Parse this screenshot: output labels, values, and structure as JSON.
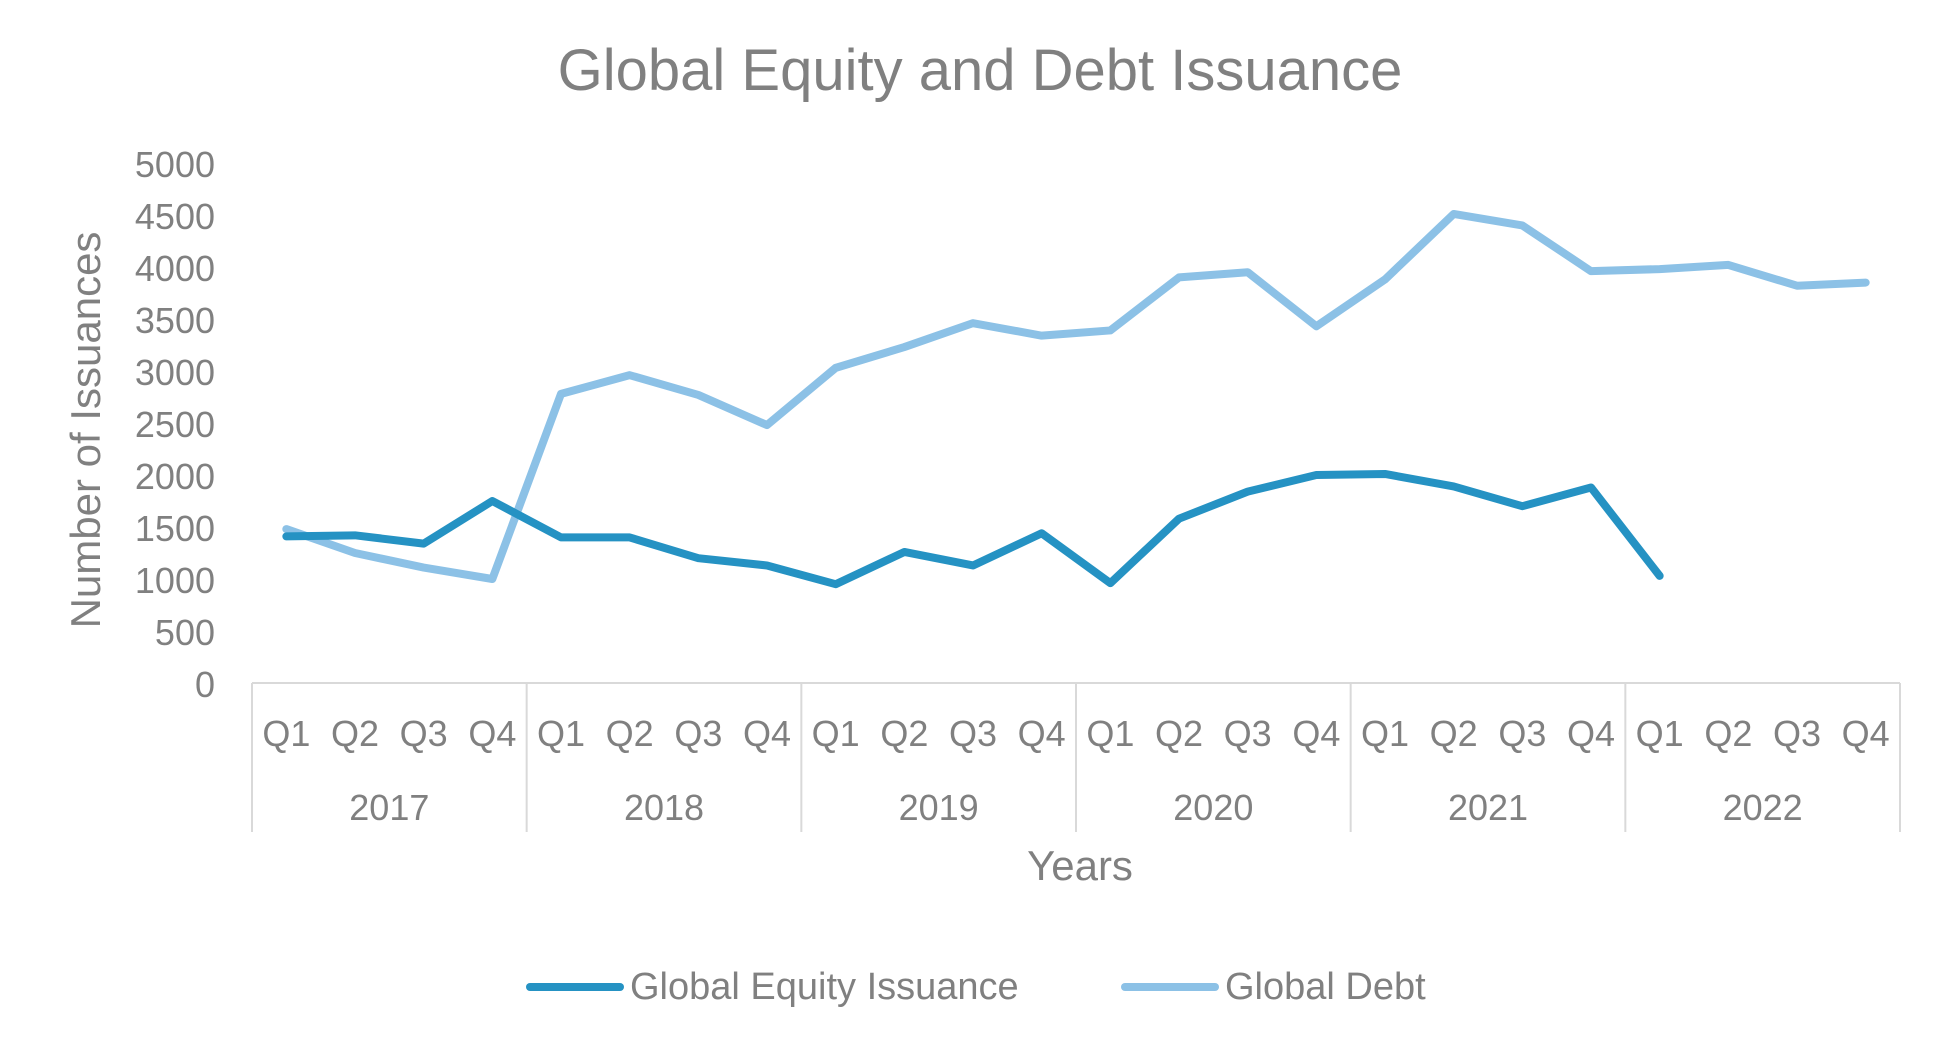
{
  "chart_data": {
    "type": "line",
    "title": "Global Equity and Debt Issuance",
    "xlabel": "Years",
    "ylabel": "Number of Issuances",
    "ylim": [
      0,
      5000
    ],
    "yticks": [
      "0",
      "500",
      "1000",
      "1500",
      "2000",
      "2500",
      "3000",
      "3500",
      "4000",
      "4500",
      "5000"
    ],
    "x_quarters": [
      "Q1",
      "Q2",
      "Q3",
      "Q4",
      "Q1",
      "Q2",
      "Q3",
      "Q4",
      "Q1",
      "Q2",
      "Q3",
      "Q4",
      "Q1",
      "Q2",
      "Q3",
      "Q4",
      "Q1",
      "Q2",
      "Q3",
      "Q4",
      "Q1",
      "Q2",
      "Q3",
      "Q4"
    ],
    "x_years": [
      "2017",
      "2018",
      "2019",
      "2020",
      "2021",
      "2022"
    ],
    "grid": false,
    "legend_position": "bottom",
    "series": [
      {
        "name": "Global Equity Issuance",
        "color": "#2592c3",
        "values": [
          1410,
          1420,
          1340,
          1750,
          1400,
          1400,
          1200,
          1130,
          950,
          1260,
          1130,
          1440,
          960,
          1580,
          1840,
          2000,
          2010,
          1890,
          1700,
          1880,
          1030,
          null,
          null,
          null
        ]
      },
      {
        "name": "Global Debt",
        "color": "#8cc1e6",
        "values": [
          1480,
          1250,
          1110,
          1000,
          2780,
          2960,
          2770,
          2480,
          3030,
          3230,
          3460,
          3340,
          3390,
          3900,
          3950,
          3430,
          3880,
          4510,
          4400,
          3960,
          3980,
          4020,
          3820,
          3850
        ]
      }
    ]
  }
}
